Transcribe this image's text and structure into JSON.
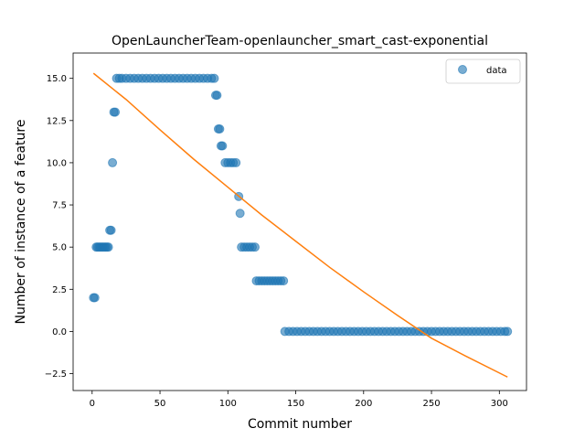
{
  "chart_data": {
    "type": "scatter",
    "title": "OpenLauncherTeam-openlauncher_smart_cast-exponential",
    "xlabel": "Commit number",
    "ylabel": "Number of instance of a feature",
    "xlim": [
      -14,
      320
    ],
    "ylim": [
      -3.5,
      16.5
    ],
    "xticks": [
      0,
      50,
      100,
      150,
      200,
      250,
      300
    ],
    "yticks": [
      -2.5,
      0.0,
      2.5,
      5.0,
      7.5,
      10.0,
      12.5,
      15.0
    ],
    "xtick_labels": [
      "0",
      "50",
      "100",
      "150",
      "200",
      "250",
      "300"
    ],
    "ytick_labels": [
      "−2.5",
      "0.0",
      "2.5",
      "5.0",
      "7.5",
      "10.0",
      "12.5",
      "15.0"
    ],
    "grid": false,
    "legend_position": "top-right",
    "series": [
      {
        "name": "data",
        "kind": "scatter",
        "color": "#1f77b4",
        "points": [
          [
            1,
            2
          ],
          [
            2,
            2
          ],
          [
            3,
            5
          ],
          [
            4,
            5
          ],
          [
            5,
            5
          ],
          [
            6,
            5
          ],
          [
            7,
            5
          ],
          [
            8,
            5
          ],
          [
            9,
            5
          ],
          [
            10,
            5
          ],
          [
            11,
            5
          ],
          [
            12,
            5
          ],
          [
            13,
            6
          ],
          [
            14,
            6
          ],
          [
            15,
            10
          ],
          [
            16,
            13
          ],
          [
            17,
            13
          ],
          [
            18,
            15
          ],
          [
            20,
            15
          ],
          [
            22,
            15
          ],
          [
            25,
            15
          ],
          [
            28,
            15
          ],
          [
            31,
            15
          ],
          [
            34,
            15
          ],
          [
            37,
            15
          ],
          [
            40,
            15
          ],
          [
            43,
            15
          ],
          [
            46,
            15
          ],
          [
            49,
            15
          ],
          [
            52,
            15
          ],
          [
            55,
            15
          ],
          [
            58,
            15
          ],
          [
            61,
            15
          ],
          [
            64,
            15
          ],
          [
            67,
            15
          ],
          [
            70,
            15
          ],
          [
            73,
            15
          ],
          [
            76,
            15
          ],
          [
            79,
            15
          ],
          [
            82,
            15
          ],
          [
            85,
            15
          ],
          [
            88,
            15
          ],
          [
            90,
            15
          ],
          [
            91,
            14
          ],
          [
            92,
            14
          ],
          [
            93,
            12
          ],
          [
            94,
            12
          ],
          [
            95,
            11
          ],
          [
            96,
            11
          ],
          [
            98,
            10
          ],
          [
            100,
            10
          ],
          [
            102,
            10
          ],
          [
            104,
            10
          ],
          [
            106,
            10
          ],
          [
            108,
            8
          ],
          [
            109,
            7
          ],
          [
            110,
            5
          ],
          [
            112,
            5
          ],
          [
            114,
            5
          ],
          [
            116,
            5
          ],
          [
            118,
            5
          ],
          [
            120,
            5
          ],
          [
            121,
            3
          ],
          [
            123,
            3
          ],
          [
            125,
            3
          ],
          [
            127,
            3
          ],
          [
            129,
            3
          ],
          [
            131,
            3
          ],
          [
            133,
            3
          ],
          [
            135,
            3
          ],
          [
            137,
            3
          ],
          [
            139,
            3
          ],
          [
            141,
            3
          ],
          [
            142,
            0
          ],
          [
            145,
            0
          ],
          [
            148,
            0
          ],
          [
            151,
            0
          ],
          [
            154,
            0
          ],
          [
            157,
            0
          ],
          [
            160,
            0
          ],
          [
            163,
            0
          ],
          [
            166,
            0
          ],
          [
            169,
            0
          ],
          [
            172,
            0
          ],
          [
            175,
            0
          ],
          [
            178,
            0
          ],
          [
            181,
            0
          ],
          [
            184,
            0
          ],
          [
            187,
            0
          ],
          [
            190,
            0
          ],
          [
            193,
            0
          ],
          [
            196,
            0
          ],
          [
            199,
            0
          ],
          [
            202,
            0
          ],
          [
            205,
            0
          ],
          [
            208,
            0
          ],
          [
            211,
            0
          ],
          [
            214,
            0
          ],
          [
            217,
            0
          ],
          [
            220,
            0
          ],
          [
            223,
            0
          ],
          [
            226,
            0
          ],
          [
            229,
            0
          ],
          [
            232,
            0
          ],
          [
            235,
            0
          ],
          [
            238,
            0
          ],
          [
            241,
            0
          ],
          [
            244,
            0
          ],
          [
            247,
            0
          ],
          [
            250,
            0
          ],
          [
            253,
            0
          ],
          [
            256,
            0
          ],
          [
            259,
            0
          ],
          [
            262,
            0
          ],
          [
            265,
            0
          ],
          [
            268,
            0
          ],
          [
            271,
            0
          ],
          [
            274,
            0
          ],
          [
            277,
            0
          ],
          [
            280,
            0
          ],
          [
            283,
            0
          ],
          [
            286,
            0
          ],
          [
            289,
            0
          ],
          [
            292,
            0
          ],
          [
            295,
            0
          ],
          [
            298,
            0
          ],
          [
            301,
            0
          ],
          [
            304,
            0
          ],
          [
            306,
            0
          ]
        ]
      },
      {
        "kind": "line",
        "color": "#ff7f0e",
        "points": [
          [
            1,
            15.3
          ],
          [
            25,
            13.75
          ],
          [
            50,
            11.95
          ],
          [
            75,
            10.2
          ],
          [
            100,
            8.55
          ],
          [
            125,
            6.9
          ],
          [
            150,
            5.35
          ],
          [
            175,
            3.8
          ],
          [
            200,
            2.35
          ],
          [
            225,
            0.95
          ],
          [
            250,
            -0.4
          ],
          [
            275,
            -1.45
          ],
          [
            306,
            -2.7
          ]
        ]
      }
    ]
  }
}
